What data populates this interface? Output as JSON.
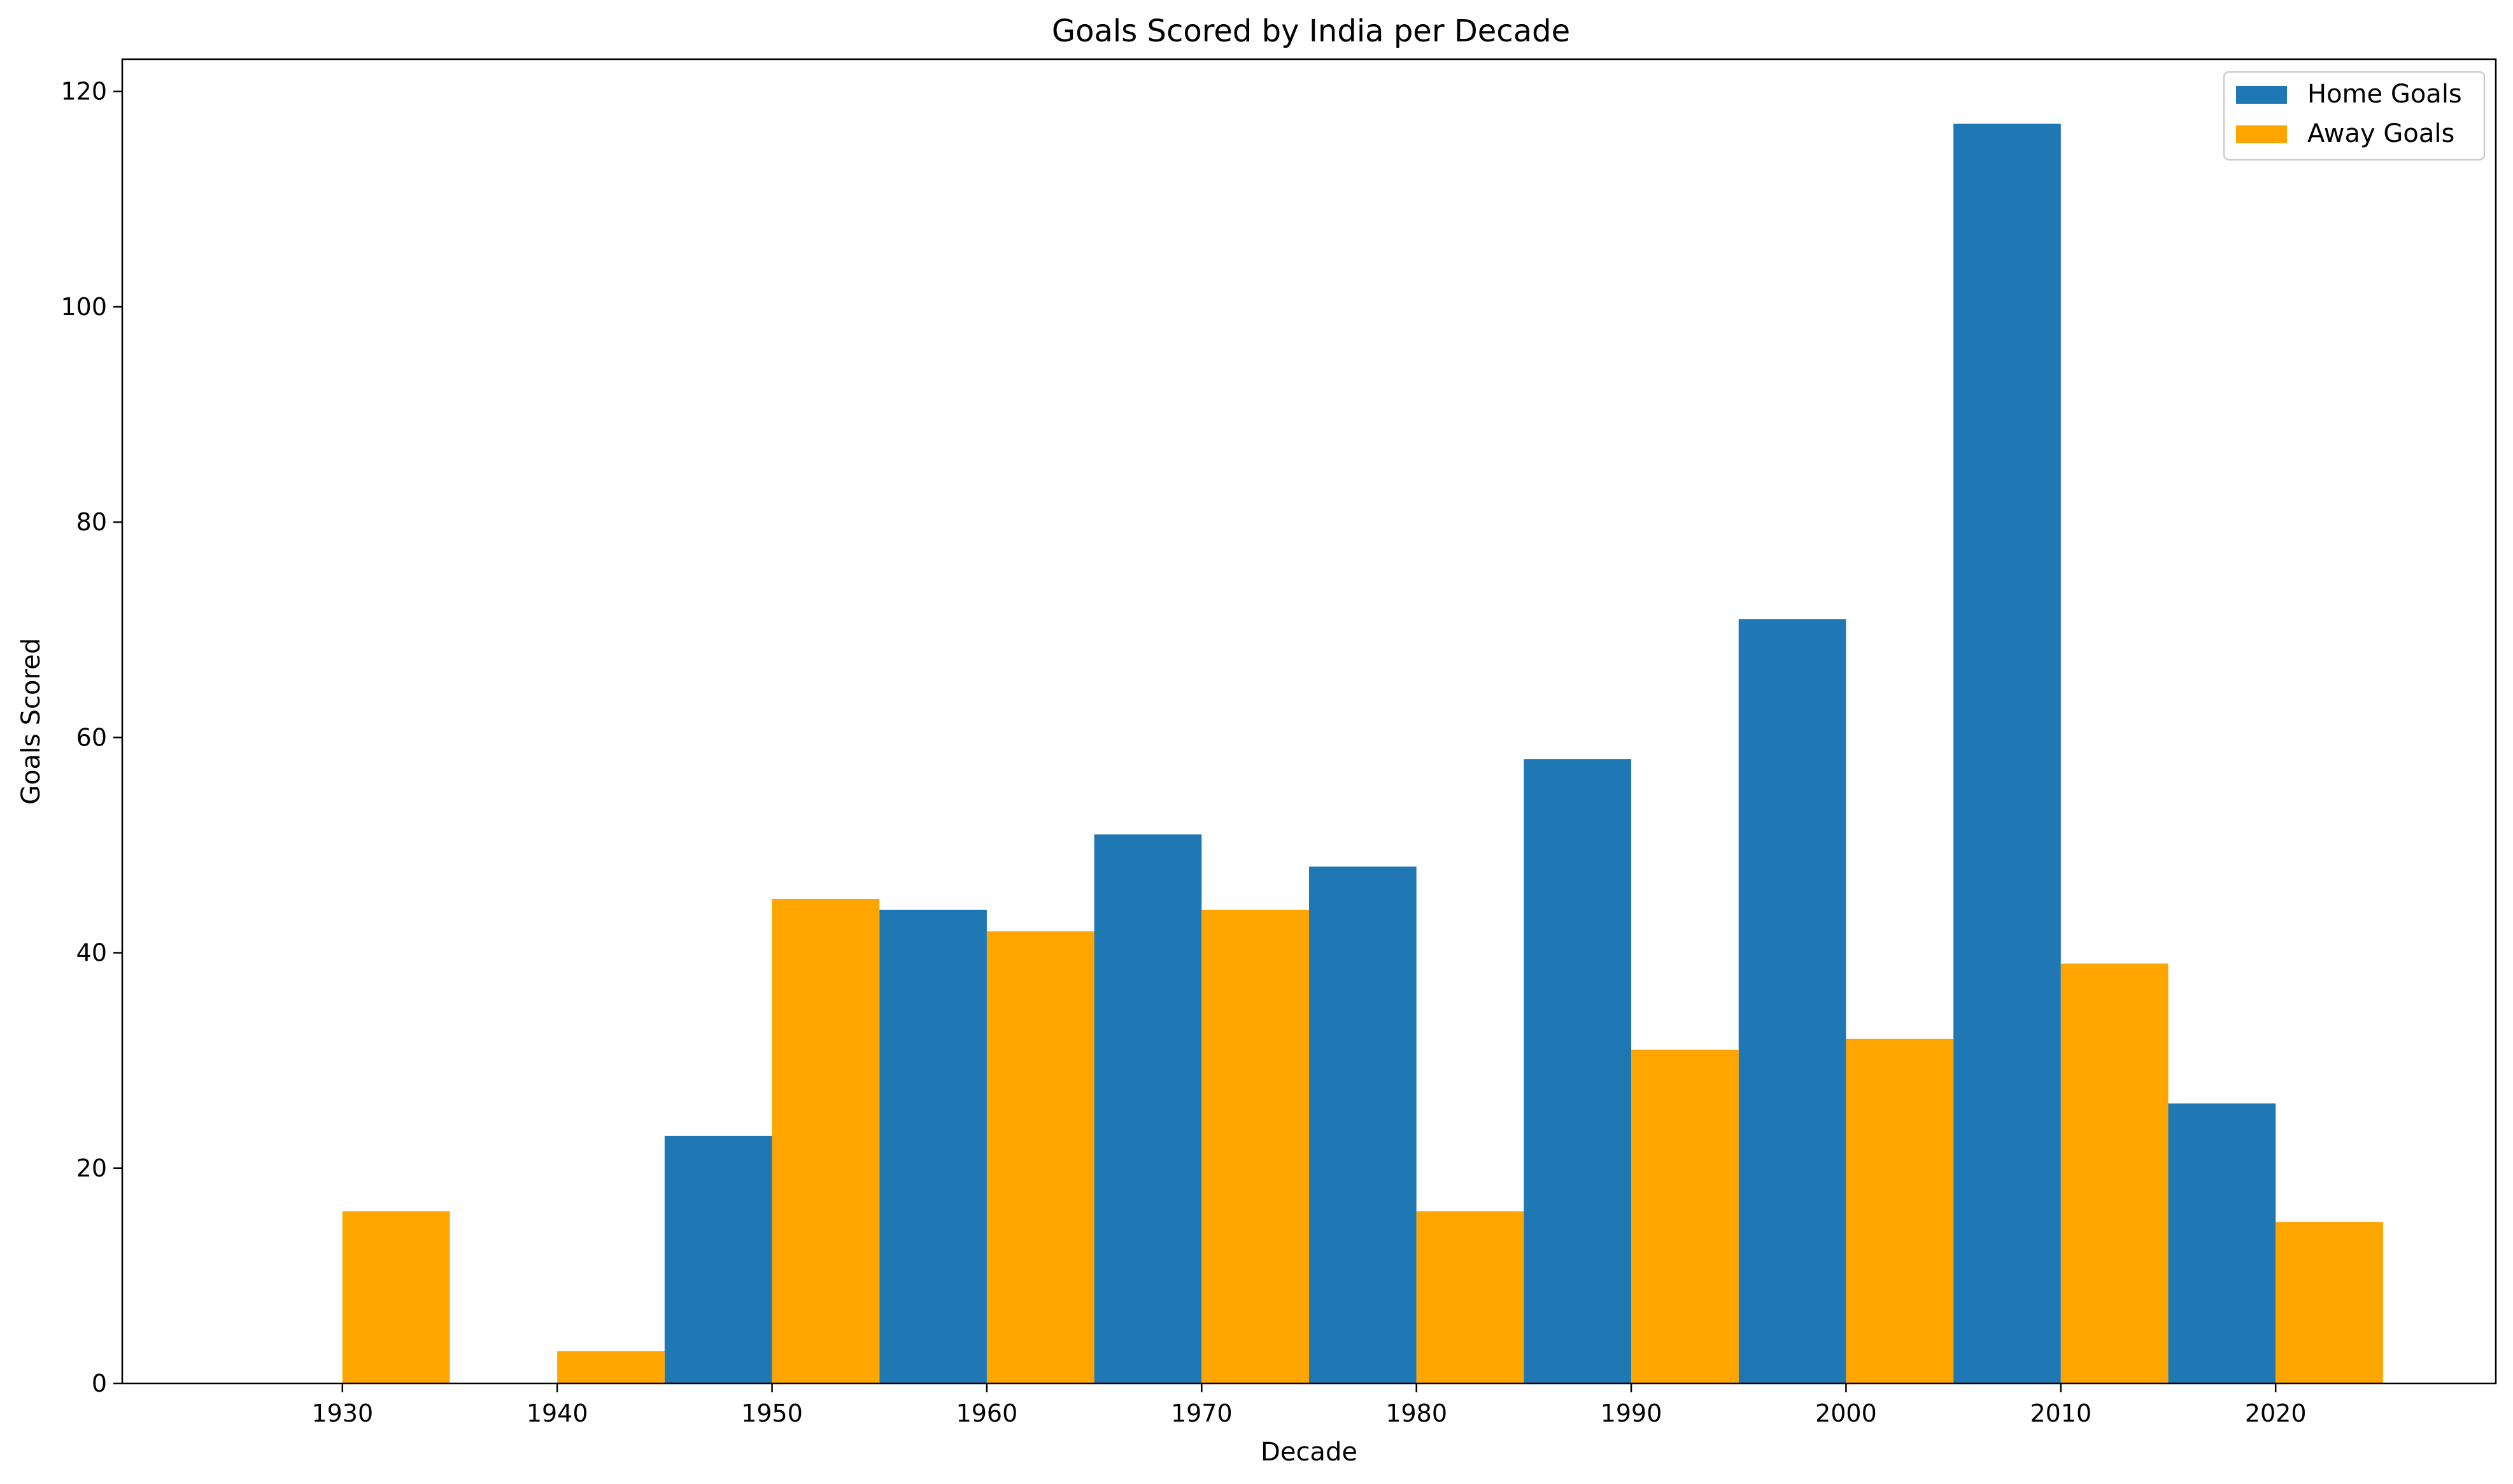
{
  "chart_data": {
    "type": "bar",
    "title": "Goals Scored by India per Decade",
    "xlabel": "Decade",
    "ylabel": "Goals Scored",
    "categories": [
      "1930",
      "1940",
      "1950",
      "1960",
      "1970",
      "1980",
      "1990",
      "2000",
      "2010",
      "2020"
    ],
    "series": [
      {
        "name": "Home Goals",
        "color": "#1f77b4",
        "values": [
          0,
          0,
          23,
          44,
          51,
          48,
          58,
          71,
          117,
          26
        ]
      },
      {
        "name": "Away Goals",
        "color": "#ffa500",
        "values": [
          16,
          3,
          45,
          42,
          44,
          16,
          31,
          32,
          39,
          15
        ]
      }
    ],
    "ylim": [
      0,
      123
    ],
    "yticks": [
      0,
      20,
      40,
      60,
      80,
      100,
      120
    ],
    "grid": false,
    "legend_position": "top-right"
  }
}
